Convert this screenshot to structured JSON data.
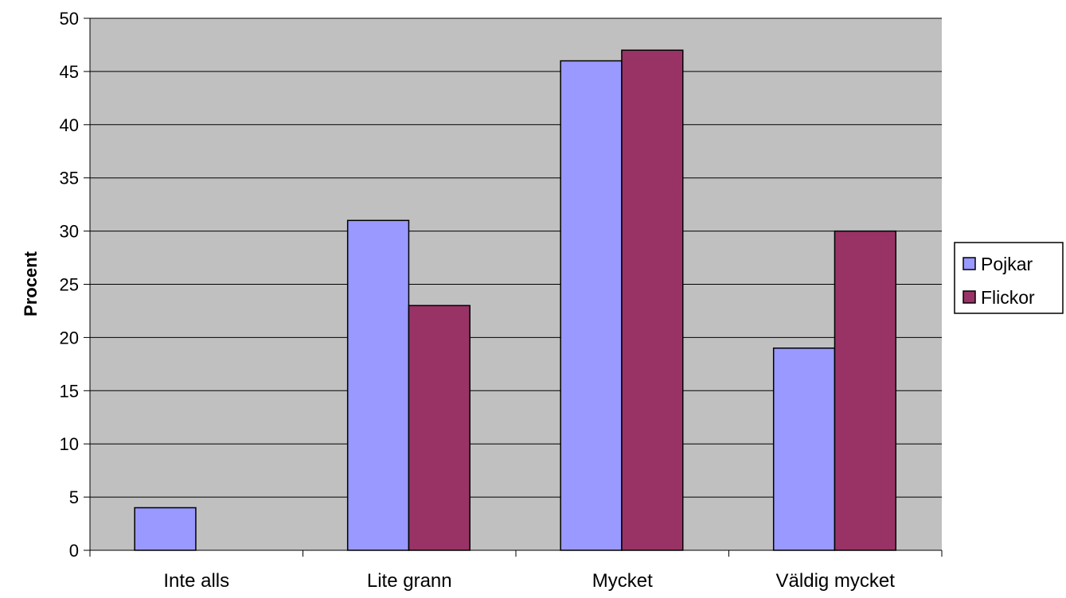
{
  "chart_data": {
    "type": "bar",
    "title": "",
    "xlabel": "",
    "ylabel": "Procent",
    "ylim": [
      0,
      50
    ],
    "y_ticks": [
      0,
      5,
      10,
      15,
      20,
      25,
      30,
      35,
      40,
      45,
      50
    ],
    "categories": [
      "Inte alls",
      "Lite grann",
      "Mycket",
      "Väldig mycket"
    ],
    "series": [
      {
        "name": "Pojkar",
        "color": "#9999FF",
        "values": [
          4,
          31,
          46,
          19
        ]
      },
      {
        "name": "Flickor",
        "color": "#993366",
        "values": [
          0,
          23,
          47,
          30
        ]
      }
    ],
    "plot_background": "#C0C0C0",
    "grid": true,
    "legend_position": "right"
  }
}
